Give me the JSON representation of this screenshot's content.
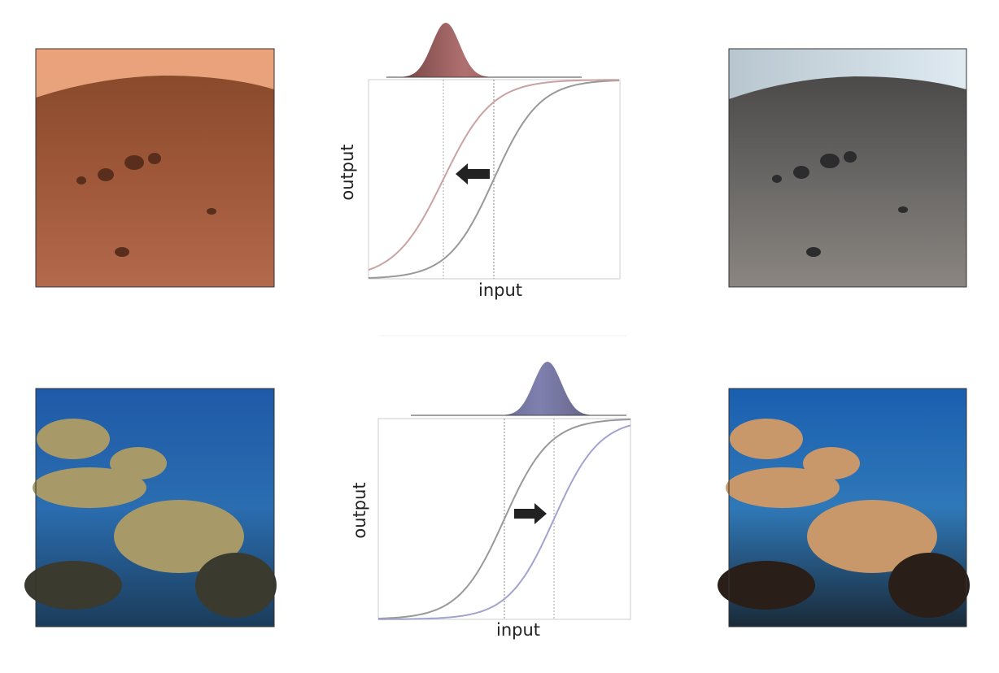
{
  "panels": [
    {
      "x_label": "input",
      "y_label": "output"
    },
    {
      "x_label": "input",
      "y_label": "output"
    }
  ]
}
